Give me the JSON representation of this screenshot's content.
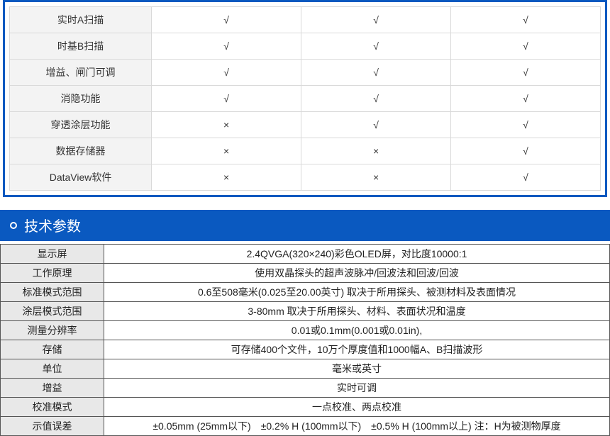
{
  "comparison": {
    "columns": 3,
    "symbols": {
      "yes": "√",
      "no": "×"
    },
    "rows": [
      {
        "label": "实时A扫描",
        "vals": [
          "yes",
          "yes",
          "yes"
        ]
      },
      {
        "label": "时基B扫描",
        "vals": [
          "yes",
          "yes",
          "yes"
        ]
      },
      {
        "label": "增益、闸门可调",
        "vals": [
          "yes",
          "yes",
          "yes"
        ]
      },
      {
        "label": "消隐功能",
        "vals": [
          "yes",
          "yes",
          "yes"
        ]
      },
      {
        "label": "穿透涂层功能",
        "vals": [
          "no",
          "yes",
          "yes"
        ]
      },
      {
        "label": "数据存储器",
        "vals": [
          "no",
          "no",
          "yes"
        ]
      },
      {
        "label": "DataView软件",
        "vals": [
          "no",
          "no",
          "yes"
        ]
      }
    ],
    "border_color": "#0a59c0",
    "row_bg": "#f3f3f3"
  },
  "section_title": "技术参数",
  "section_bg": "#0a59c0",
  "specs": [
    {
      "key": "显示屏",
      "value": "2.4QVGA(320×240)彩色OLED屏，对比度10000:1"
    },
    {
      "key": "工作原理",
      "value": "使用双晶探头的超声波脉冲/回波法和回波/回波"
    },
    {
      "key": "标准模式范围",
      "value": "0.6至508毫米(0.025至20.00英寸) 取决于所用探头、被测材料及表面情况"
    },
    {
      "key": "涂层模式范围",
      "value": "3-80mm 取决于所用探头、材料、表面状况和温度"
    },
    {
      "key": "测量分辨率",
      "value": "0.01或0.1mm(0.001或0.01in),"
    },
    {
      "key": "存储",
      "value": "可存储400个文件，10万个厚度值和1000幅A、B扫描波形"
    },
    {
      "key": "单位",
      "value": "毫米或英寸"
    },
    {
      "key": "增益",
      "value": "实时可调"
    },
    {
      "key": "校准模式",
      "value": "一点校准、两点校准"
    },
    {
      "key": "示值误差",
      "value": "±0.05mm (25mm以下)　±0.2% H (100mm以下)　±0.5% H (100mm以上) 注：H为被测物厚度"
    }
  ]
}
